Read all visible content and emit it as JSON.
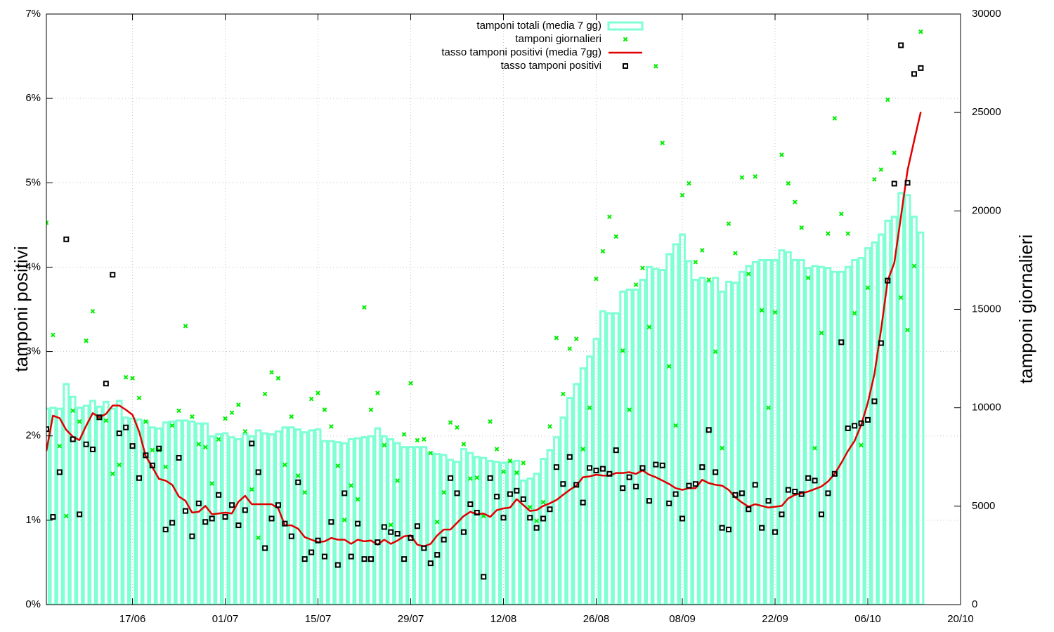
{
  "chart_data": {
    "type": "combo",
    "ylabel": "tamponi positivi",
    "y2label": "tamponi giornalieri",
    "legend": "top-center",
    "grid": true,
    "xlim": [
      "04/06",
      "20/10"
    ],
    "xticks": [
      "17/06",
      "01/07",
      "15/07",
      "29/07",
      "12/08",
      "26/08",
      "08/09",
      "22/09",
      "06/10",
      "20/10"
    ],
    "ylim": [
      0,
      7
    ],
    "yticks": [
      {
        "value": 0,
        "label": "0%"
      },
      {
        "value": 1,
        "label": "1%"
      },
      {
        "value": 2,
        "label": "2%"
      },
      {
        "value": 3,
        "label": "3%"
      },
      {
        "value": 4,
        "label": "4%"
      },
      {
        "value": 5,
        "label": "5%"
      },
      {
        "value": 6,
        "label": "6%"
      },
      {
        "value": 7,
        "label": "7%"
      }
    ],
    "y2lim": [
      0,
      30000
    ],
    "y2ticks": [
      0,
      5000,
      10000,
      15000,
      20000,
      25000,
      30000
    ],
    "x": [
      "04/06",
      "05/06",
      "06/06",
      "07/06",
      "08/06",
      "09/06",
      "10/06",
      "11/06",
      "12/06",
      "13/06",
      "14/06",
      "15/06",
      "16/06",
      "17/06",
      "18/06",
      "19/06",
      "20/06",
      "21/06",
      "22/06",
      "23/06",
      "24/06",
      "25/06",
      "26/06",
      "27/06",
      "28/06",
      "29/06",
      "30/06",
      "01/07",
      "02/07",
      "03/07",
      "04/07",
      "05/07",
      "06/07",
      "07/07",
      "08/07",
      "09/07",
      "10/07",
      "11/07",
      "12/07",
      "13/07",
      "14/07",
      "15/07",
      "16/07",
      "17/07",
      "18/07",
      "19/07",
      "20/07",
      "21/07",
      "22/07",
      "23/07",
      "24/07",
      "25/07",
      "26/07",
      "27/07",
      "28/07",
      "29/07",
      "30/07",
      "31/07",
      "01/08",
      "02/08",
      "03/08",
      "04/08",
      "05/08",
      "06/08",
      "07/08",
      "08/08",
      "09/08",
      "10/08",
      "11/08",
      "12/08",
      "13/08",
      "14/08",
      "15/08",
      "16/08",
      "17/08",
      "18/08",
      "19/08",
      "20/08",
      "21/08",
      "22/08",
      "23/08",
      "24/08",
      "25/08",
      "26/08",
      "27/08",
      "28/08",
      "29/08",
      "30/08",
      "31/08",
      "01/09",
      "02/09",
      "03/09",
      "04/09",
      "05/09",
      "06/09",
      "07/09",
      "08/09",
      "09/09",
      "10/09",
      "11/09",
      "12/09",
      "13/09",
      "14/09",
      "15/09",
      "16/09",
      "17/09",
      "18/09",
      "19/09",
      "20/09",
      "21/09",
      "22/09",
      "23/09",
      "24/09",
      "25/09",
      "26/09",
      "27/09",
      "28/09",
      "29/09",
      "30/09",
      "01/10",
      "02/10",
      "03/10",
      "04/10",
      "05/10",
      "06/10",
      "07/10",
      "08/10",
      "09/10",
      "10/10",
      "11/10",
      "12/10",
      "13/10",
      "14/10"
    ],
    "series": [
      {
        "name": "tamponi totali (media 7 gg)",
        "style": "bar",
        "axis": "y2",
        "color": "#7fffd4",
        "values": [
          9950,
          10000,
          9950,
          11200,
          10550,
          10000,
          10100,
          10350,
          10050,
          10300,
          9950,
          10350,
          9500,
          9450,
          9400,
          9300,
          9000,
          8950,
          9250,
          9300,
          9350,
          9350,
          9300,
          9200,
          9200,
          8550,
          8650,
          8700,
          8500,
          8400,
          8650,
          8550,
          8850,
          8700,
          8650,
          8800,
          9000,
          9000,
          8900,
          8750,
          8850,
          8900,
          8300,
          8300,
          8250,
          8200,
          8400,
          8450,
          8500,
          8550,
          8950,
          8550,
          8400,
          8200,
          8000,
          8000,
          8000,
          8000,
          7700,
          7650,
          7600,
          7350,
          7250,
          7900,
          7700,
          7500,
          7450,
          7300,
          7250,
          7200,
          7250,
          7300,
          6300,
          6400,
          6650,
          7400,
          7850,
          8500,
          9500,
          10500,
          11200,
          12000,
          12600,
          13500,
          14900,
          14800,
          14800,
          15900,
          16000,
          16000,
          16500,
          17150,
          17050,
          17000,
          17800,
          18300,
          18800,
          17450,
          16500,
          16600,
          16400,
          16600,
          15900,
          16400,
          16350,
          16900,
          17200,
          17400,
          17500,
          17500,
          17500,
          18000,
          17900,
          17500,
          17500,
          17100,
          17200,
          17150,
          17100,
          16900,
          16900,
          17150,
          17500,
          17600,
          18100,
          18400,
          18800,
          19500,
          19700,
          20900,
          20800,
          19700,
          18900
        ]
      },
      {
        "name": "tamponi giornalieri",
        "style": "cross",
        "axis": "y2",
        "color": "#00ee00",
        "values": [
          19400,
          13700,
          8050,
          4500,
          9850,
          9300,
          13400,
          14900,
          9500,
          9350,
          6650,
          7100,
          11550,
          11500,
          10500,
          9300,
          7850,
          7850,
          7000,
          9100,
          9850,
          14150,
          9550,
          8150,
          8000,
          6150,
          8400,
          9450,
          9750,
          10150,
          8800,
          5850,
          3400,
          10700,
          11800,
          11500,
          7100,
          9550,
          6550,
          5700,
          10450,
          10750,
          9900,
          9050,
          7050,
          4300,
          6050,
          5350,
          15100,
          9900,
          10750,
          8100,
          4050,
          6300,
          8650,
          11250,
          8350,
          8400,
          7700,
          4200,
          5700,
          9250,
          9000,
          8150,
          6400,
          6450,
          4500,
          9300,
          7900,
          6750,
          7300,
          6700,
          7200,
          4950,
          4250,
          5200,
          9050,
          13550,
          10700,
          13000,
          13500,
          7900,
          10000,
          16550,
          17950,
          19700,
          18700,
          12900,
          9900,
          16250,
          17100,
          14100,
          27350,
          23450,
          12100,
          9100,
          20800,
          21400,
          17400,
          18000,
          16500,
          12850,
          7950,
          19350,
          17850,
          21700,
          16800,
          21750,
          14950,
          10000,
          14850,
          22850,
          21400,
          20450,
          19150,
          16600,
          7950,
          13800,
          18850,
          24700,
          19850,
          18850,
          14800,
          8100,
          16100,
          21600,
          22100,
          25650,
          22950,
          15600,
          13950,
          17200,
          29100
        ]
      },
      {
        "name": "tasso tamponi positivi (media 7gg)",
        "style": "line",
        "color": "#e00000",
        "values": [
          1.82,
          2.24,
          2.21,
          2.07,
          1.99,
          1.95,
          2.12,
          2.27,
          2.22,
          2.26,
          2.36,
          2.36,
          2.31,
          2.25,
          2.05,
          1.76,
          1.63,
          1.49,
          1.47,
          1.42,
          1.28,
          1.23,
          1.09,
          1.1,
          1.17,
          1.07,
          1.08,
          1.09,
          1.08,
          1.22,
          1.29,
          1.19,
          1.19,
          1.19,
          1.19,
          1.14,
          0.94,
          0.94,
          0.9,
          0.8,
          0.77,
          0.74,
          0.75,
          0.79,
          0.77,
          0.77,
          0.72,
          0.77,
          0.75,
          0.76,
          0.71,
          0.77,
          0.72,
          0.76,
          0.81,
          0.82,
          0.71,
          0.69,
          0.72,
          0.82,
          0.89,
          0.89,
          0.97,
          1.05,
          1.1,
          1.07,
          1.08,
          1.04,
          1.12,
          1.14,
          1.15,
          1.25,
          1.18,
          1.11,
          1.12,
          1.17,
          1.2,
          1.24,
          1.3,
          1.36,
          1.41,
          1.51,
          1.52,
          1.54,
          1.53,
          1.53,
          1.56,
          1.56,
          1.57,
          1.55,
          1.59,
          1.54,
          1.51,
          1.47,
          1.43,
          1.38,
          1.36,
          1.38,
          1.38,
          1.48,
          1.44,
          1.42,
          1.41,
          1.36,
          1.27,
          1.21,
          1.16,
          1.19,
          1.17,
          1.15,
          1.16,
          1.17,
          1.26,
          1.3,
          1.32,
          1.34,
          1.37,
          1.4,
          1.46,
          1.55,
          1.68,
          1.82,
          1.94,
          2.13,
          2.39,
          2.73,
          3.26,
          3.84,
          4.05,
          4.6,
          5.15,
          5.5,
          5.84
        ]
      },
      {
        "name": "tasso tamponi positivi",
        "style": "square",
        "color": "#000000",
        "values": [
          2.08,
          1.04,
          1.57,
          4.33,
          1.96,
          1.07,
          1.9,
          1.84,
          2.22,
          2.62,
          3.91,
          2.03,
          2.1,
          1.88,
          1.5,
          1.77,
          1.65,
          1.85,
          0.89,
          0.97,
          1.74,
          1.11,
          0.81,
          1.2,
          0.98,
          1.02,
          1.3,
          1.04,
          1.18,
          0.94,
          1.12,
          1.91,
          1.57,
          0.67,
          1.02,
          1.18,
          0.96,
          0.81,
          1.45,
          0.54,
          0.62,
          0.76,
          0.57,
          0.98,
          0.47,
          1.32,
          0.57,
          0.96,
          0.54,
          0.54,
          0.74,
          0.92,
          0.86,
          0.84,
          0.54,
          0.79,
          0.93,
          0.67,
          0.49,
          0.59,
          0.77,
          1.5,
          1.32,
          0.86,
          1.19,
          1.09,
          0.33,
          1.5,
          1.28,
          1.03,
          1.31,
          1.35,
          1.25,
          1.03,
          0.91,
          1.02,
          1.13,
          1.63,
          1.43,
          1.75,
          1.42,
          1.21,
          1.62,
          1.59,
          1.61,
          1.55,
          1.83,
          1.38,
          1.51,
          1.4,
          1.62,
          1.23,
          1.66,
          1.65,
          1.2,
          1.31,
          1.02,
          1.41,
          1.43,
          1.63,
          2.07,
          1.57,
          0.91,
          0.89,
          1.3,
          1.32,
          1.13,
          1.42,
          0.91,
          1.23,
          0.86,
          1.07,
          1.36,
          1.34,
          1.31,
          1.5,
          1.47,
          1.07,
          1.32,
          1.55,
          3.11,
          2.09,
          2.12,
          2.15,
          2.19,
          2.41,
          3.1,
          3.84,
          4.99,
          6.63,
          5.0,
          6.29,
          6.36
        ]
      }
    ]
  }
}
